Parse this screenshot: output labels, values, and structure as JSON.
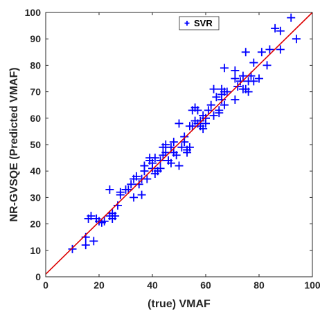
{
  "chart_data": {
    "type": "scatter",
    "xlabel": "(true) VMAF",
    "ylabel": "NR-GVSQE (Predicted VMAF)",
    "xlim": [
      0,
      100
    ],
    "ylim": [
      0,
      100
    ],
    "xticks": [
      0,
      20,
      40,
      60,
      80,
      100
    ],
    "yticks": [
      0,
      10,
      20,
      30,
      40,
      50,
      60,
      70,
      80,
      90,
      100
    ],
    "grid": false,
    "legend_position": "top-center",
    "series": [
      {
        "name": "SVR",
        "marker": "plus",
        "color": "#0000ff",
        "points": [
          [
            10,
            10.5
          ],
          [
            15,
            12
          ],
          [
            15,
            15
          ],
          [
            16,
            22
          ],
          [
            17,
            23
          ],
          [
            18,
            13.5
          ],
          [
            19,
            22
          ],
          [
            20,
            21
          ],
          [
            21,
            20.5
          ],
          [
            22,
            21
          ],
          [
            24,
            23
          ],
          [
            24,
            33
          ],
          [
            25,
            24
          ],
          [
            25,
            22
          ],
          [
            26,
            23
          ],
          [
            27,
            27
          ],
          [
            28,
            31
          ],
          [
            28,
            32
          ],
          [
            30,
            33
          ],
          [
            31,
            33
          ],
          [
            32,
            35
          ],
          [
            33,
            30
          ],
          [
            33,
            37
          ],
          [
            34,
            38
          ],
          [
            35,
            35
          ],
          [
            36,
            31
          ],
          [
            36,
            37
          ],
          [
            37,
            40
          ],
          [
            37,
            42
          ],
          [
            38,
            37
          ],
          [
            39,
            44
          ],
          [
            39,
            45
          ],
          [
            40,
            41
          ],
          [
            40,
            43
          ],
          [
            41,
            45
          ],
          [
            41,
            39
          ],
          [
            42,
            40
          ],
          [
            43,
            41
          ],
          [
            43,
            44
          ],
          [
            44,
            46
          ],
          [
            44,
            49
          ],
          [
            45,
            47
          ],
          [
            45,
            50
          ],
          [
            46,
            44
          ],
          [
            47,
            43
          ],
          [
            47,
            49
          ],
          [
            48,
            51
          ],
          [
            48,
            47
          ],
          [
            49,
            46
          ],
          [
            50,
            42
          ],
          [
            50,
            58
          ],
          [
            51,
            49
          ],
          [
            52,
            53
          ],
          [
            52,
            51
          ],
          [
            53,
            47
          ],
          [
            53,
            48
          ],
          [
            54,
            57
          ],
          [
            54,
            49
          ],
          [
            55,
            57
          ],
          [
            55,
            63
          ],
          [
            56,
            59
          ],
          [
            56,
            64
          ],
          [
            57,
            58
          ],
          [
            57,
            63
          ],
          [
            58,
            57
          ],
          [
            58,
            59
          ],
          [
            59,
            56
          ],
          [
            59,
            61
          ],
          [
            60,
            60
          ],
          [
            60,
            58
          ],
          [
            61,
            63
          ],
          [
            62,
            65
          ],
          [
            63,
            61
          ],
          [
            63,
            71
          ],
          [
            64,
            68
          ],
          [
            65,
            62
          ],
          [
            65,
            63
          ],
          [
            66,
            67
          ],
          [
            66,
            69
          ],
          [
            66,
            71
          ],
          [
            67,
            65
          ],
          [
            67,
            70
          ],
          [
            67,
            79
          ],
          [
            68,
            70
          ],
          [
            71,
            75
          ],
          [
            71,
            67
          ],
          [
            71,
            78
          ],
          [
            72,
            72
          ],
          [
            73,
            74
          ],
          [
            74,
            71
          ],
          [
            74,
            76
          ],
          [
            75,
            85
          ],
          [
            75,
            71
          ],
          [
            76,
            74
          ],
          [
            76,
            70
          ],
          [
            77,
            76
          ],
          [
            78,
            74
          ],
          [
            78,
            81
          ],
          [
            80,
            75
          ],
          [
            81,
            85
          ],
          [
            83,
            80
          ],
          [
            84,
            86
          ],
          [
            86,
            94
          ],
          [
            88,
            93
          ],
          [
            88,
            86
          ],
          [
            92,
            98
          ],
          [
            94,
            90
          ]
        ]
      }
    ],
    "fit_line": {
      "color": "#dd0000",
      "from": [
        0,
        1
      ],
      "to": [
        100,
        100
      ]
    }
  }
}
